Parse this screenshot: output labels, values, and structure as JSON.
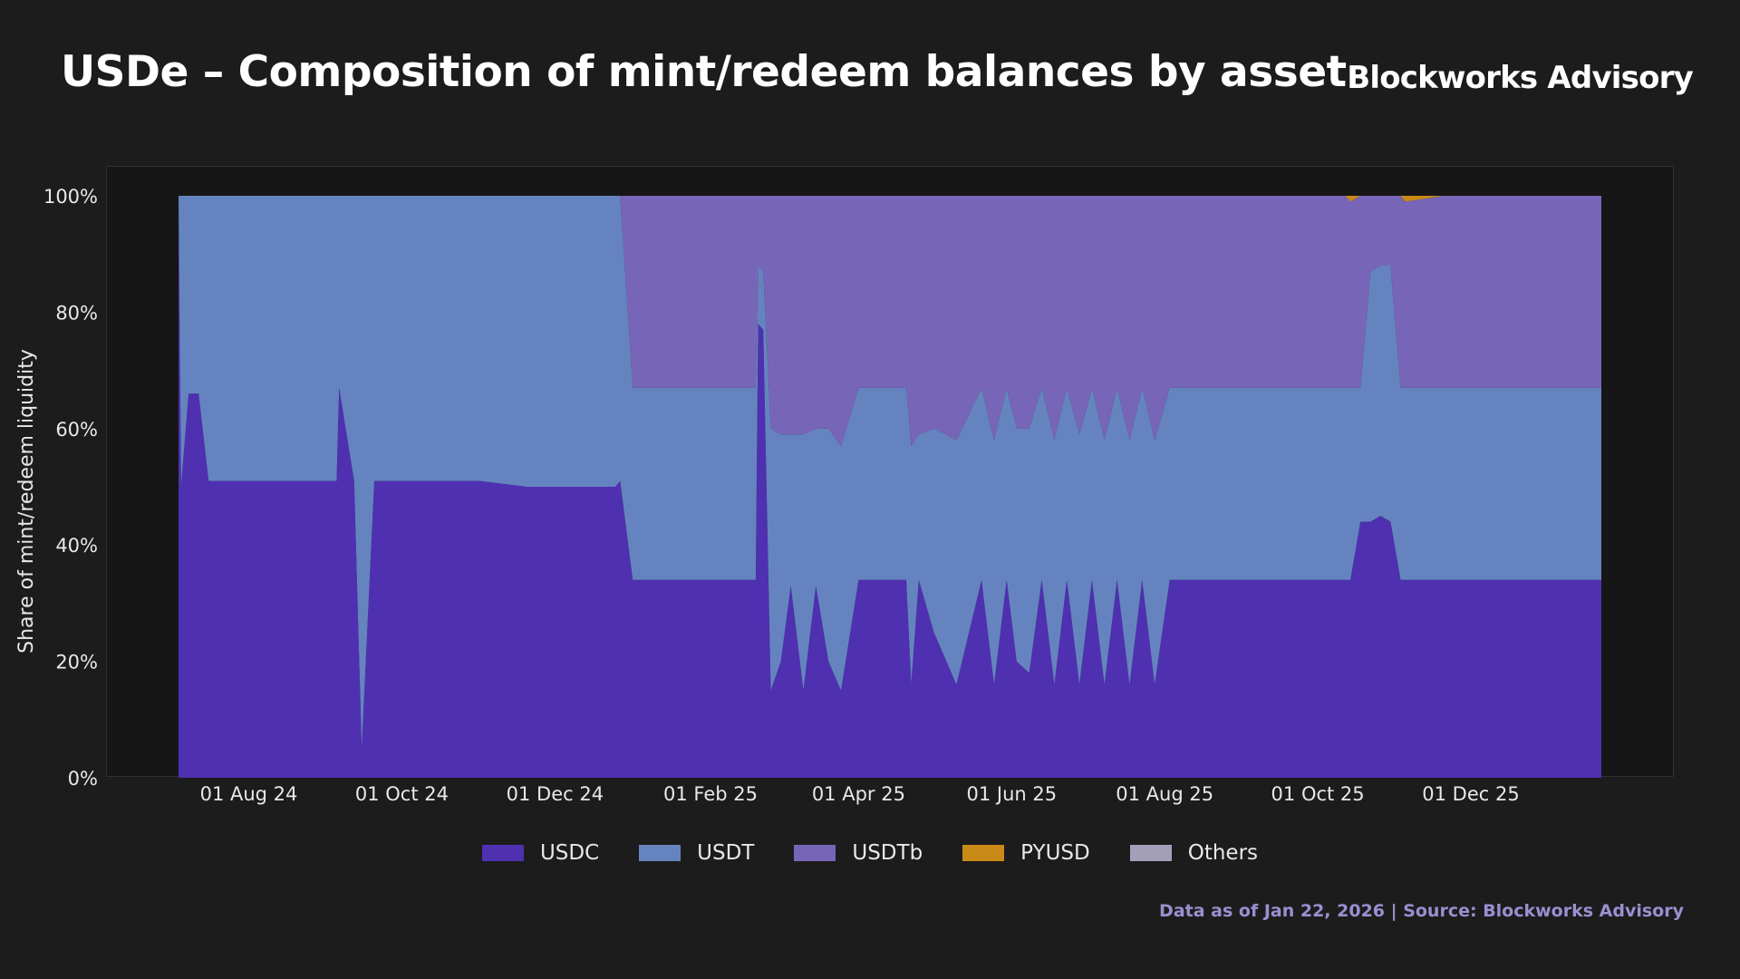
{
  "header": {
    "title": "USDe – Composition of mint/redeem balances by asset",
    "brand": "Blockworks Advisory"
  },
  "footer": {
    "source": "Data as of Jan 22, 2026 | Source: Blockworks Advisory"
  },
  "colors": {
    "USDC": "#4e30b1",
    "USDT": "#6584bf",
    "USDTb": "#7766b8",
    "PYUSD": "#c98a17",
    "Others": "#a49fb8"
  },
  "chart_data": {
    "type": "area",
    "stacked": true,
    "normalized": true,
    "title": "USDe – Composition of mint/redeem balances by asset",
    "xlabel": "",
    "ylabel": "Share of mint/redeem liquidity",
    "ylim": [
      0,
      100
    ],
    "yticks": [
      "0%",
      "20%",
      "40%",
      "60%",
      "80%",
      "100%"
    ],
    "xlim": [
      "2024-07-04",
      "2026-01-22"
    ],
    "xticks": [
      {
        "date": "2024-08-01",
        "label": "01 Aug 24"
      },
      {
        "date": "2024-10-01",
        "label": "01 Oct 24"
      },
      {
        "date": "2024-12-01",
        "label": "01 Dec 24"
      },
      {
        "date": "2025-02-01",
        "label": "01 Feb 25"
      },
      {
        "date": "2025-04-01",
        "label": "01 Apr 25"
      },
      {
        "date": "2025-06-01",
        "label": "01 Jun 25"
      },
      {
        "date": "2025-08-01",
        "label": "01 Aug 25"
      },
      {
        "date": "2025-10-01",
        "label": "01 Oct 25"
      },
      {
        "date": "2025-12-01",
        "label": "01 Dec 25"
      }
    ],
    "grid": false,
    "legend_position": "bottom",
    "x": [
      "2024-07-04",
      "2024-07-05",
      "2024-07-08",
      "2024-07-12",
      "2024-07-16",
      "2024-07-19",
      "2024-07-23",
      "2024-07-26",
      "2024-08-05",
      "2024-08-20",
      "2024-09-05",
      "2024-09-06",
      "2024-09-12",
      "2024-09-15",
      "2024-09-20",
      "2024-10-10",
      "2024-11-01",
      "2024-11-20",
      "2024-12-10",
      "2024-12-20",
      "2024-12-25",
      "2024-12-27",
      "2025-01-01",
      "2025-01-06",
      "2025-01-10",
      "2025-01-15",
      "2025-01-18",
      "2025-01-22",
      "2025-01-25",
      "2025-02-01",
      "2025-02-03",
      "2025-02-05",
      "2025-02-10",
      "2025-02-15",
      "2025-02-19",
      "2025-02-20",
      "2025-02-22",
      "2025-02-25",
      "2025-03-01",
      "2025-03-05",
      "2025-03-10",
      "2025-03-15",
      "2025-03-20",
      "2025-03-25",
      "2025-04-01",
      "2025-04-05",
      "2025-04-10",
      "2025-04-15",
      "2025-04-20",
      "2025-04-22",
      "2025-04-25",
      "2025-05-01",
      "2025-05-10",
      "2025-05-20",
      "2025-05-25",
      "2025-05-30",
      "2025-06-03",
      "2025-06-08",
      "2025-06-13",
      "2025-06-18",
      "2025-06-23",
      "2025-06-28",
      "2025-07-03",
      "2025-07-08",
      "2025-07-13",
      "2025-07-18",
      "2025-07-23",
      "2025-07-28",
      "2025-08-03",
      "2025-08-08",
      "2025-08-15",
      "2025-09-01",
      "2025-09-15",
      "2025-10-01",
      "2025-10-10",
      "2025-10-12",
      "2025-10-14",
      "2025-10-18",
      "2025-10-22",
      "2025-10-26",
      "2025-10-30",
      "2025-11-03",
      "2025-11-05",
      "2025-11-20",
      "2025-12-01",
      "2025-12-15",
      "2026-01-01",
      "2026-01-10",
      "2026-01-22"
    ],
    "series": [
      {
        "name": "USDC",
        "values": [
          100,
          50,
          66,
          66,
          51,
          51,
          51,
          51,
          51,
          51,
          51,
          67,
          51,
          5,
          51,
          51,
          51,
          50,
          50,
          50,
          50,
          51,
          34,
          34,
          34,
          34,
          34,
          34,
          34,
          34,
          34,
          34,
          34,
          34,
          34,
          78,
          77,
          15,
          20,
          33,
          15,
          33,
          20,
          15,
          34,
          34,
          34,
          34,
          34,
          16,
          34,
          25,
          16,
          34,
          16,
          34,
          20,
          18,
          34,
          16,
          34,
          16,
          34,
          16,
          34,
          16,
          34,
          16,
          34,
          34,
          34,
          34,
          34,
          34,
          34,
          34,
          34,
          44,
          44,
          45,
          44,
          34,
          34,
          34,
          34,
          34,
          34,
          34,
          34
        ]
      },
      {
        "name": "USDT",
        "values": [
          0,
          50,
          34,
          34,
          49,
          49,
          49,
          49,
          49,
          49,
          49,
          33,
          49,
          95,
          49,
          49,
          49,
          50,
          50,
          50,
          50,
          49,
          33,
          33,
          33,
          33,
          33,
          33,
          33,
          33,
          33,
          33,
          33,
          33,
          33,
          10,
          10,
          45,
          39,
          26,
          44,
          27,
          40,
          42,
          33,
          33,
          33,
          33,
          33,
          41,
          25,
          35,
          42,
          33,
          42,
          33,
          40,
          42,
          33,
          42,
          33,
          43,
          33,
          42,
          33,
          42,
          33,
          42,
          33,
          33,
          33,
          33,
          33,
          33,
          33,
          33,
          33,
          23,
          43,
          43,
          44,
          33,
          33,
          33,
          33,
          33,
          33,
          33,
          33
        ]
      },
      {
        "name": "USDTb",
        "values": [
          0,
          0,
          0,
          0,
          0,
          0,
          0,
          0,
          0,
          0,
          0,
          0,
          0,
          0,
          0,
          0,
          0,
          0,
          0,
          0,
          0,
          0,
          33,
          33,
          33,
          33,
          33,
          33,
          33,
          33,
          33,
          33,
          33,
          33,
          33,
          12,
          13,
          40,
          41,
          41,
          41,
          40,
          40,
          43,
          33,
          33,
          33,
          33,
          33,
          43,
          41,
          40,
          42,
          33,
          42,
          33,
          40,
          40,
          33,
          42,
          33,
          41,
          33,
          42,
          33,
          42,
          33,
          42,
          33,
          33,
          33,
          33,
          33,
          33,
          33,
          33,
          32,
          33,
          13,
          12,
          12,
          33,
          32,
          33,
          33,
          33,
          33,
          33,
          33
        ]
      },
      {
        "name": "PYUSD",
        "values": [
          0,
          0,
          0,
          0,
          0,
          0,
          0,
          0,
          0,
          0,
          0,
          0,
          0,
          0,
          0,
          0,
          0,
          0,
          0,
          0,
          0,
          0,
          0,
          0,
          0,
          0,
          0,
          0,
          0,
          0,
          0,
          0,
          0,
          0,
          0,
          0,
          0,
          0,
          0,
          0,
          0,
          0,
          0,
          0,
          0,
          0,
          0,
          0,
          0,
          0,
          0,
          0,
          0,
          0,
          0,
          0,
          0,
          0,
          0,
          0,
          0,
          0,
          0,
          0,
          0,
          0,
          0,
          0,
          0,
          0,
          0,
          0,
          0,
          0,
          0,
          0,
          1,
          0,
          0,
          0,
          0,
          0,
          1,
          0,
          0,
          0,
          0,
          0,
          0
        ]
      },
      {
        "name": "Others",
        "values": [
          0,
          0,
          0,
          0,
          0,
          0,
          0,
          0,
          0,
          0,
          0,
          0,
          0,
          0,
          0,
          0,
          0,
          0,
          0,
          0,
          0,
          0,
          0,
          0,
          0,
          0,
          0,
          0,
          0,
          0,
          0,
          0,
          0,
          0,
          0,
          0,
          0,
          0,
          0,
          0,
          0,
          0,
          0,
          0,
          0,
          0,
          0,
          0,
          0,
          0,
          0,
          0,
          0,
          0,
          0,
          0,
          0,
          0,
          0,
          0,
          0,
          0,
          0,
          0,
          0,
          0,
          0,
          0,
          0,
          0,
          0,
          0,
          0,
          0,
          0,
          0,
          0,
          0,
          0,
          0,
          0,
          0,
          0,
          0,
          0,
          0,
          0,
          0,
          0
        ]
      }
    ]
  }
}
